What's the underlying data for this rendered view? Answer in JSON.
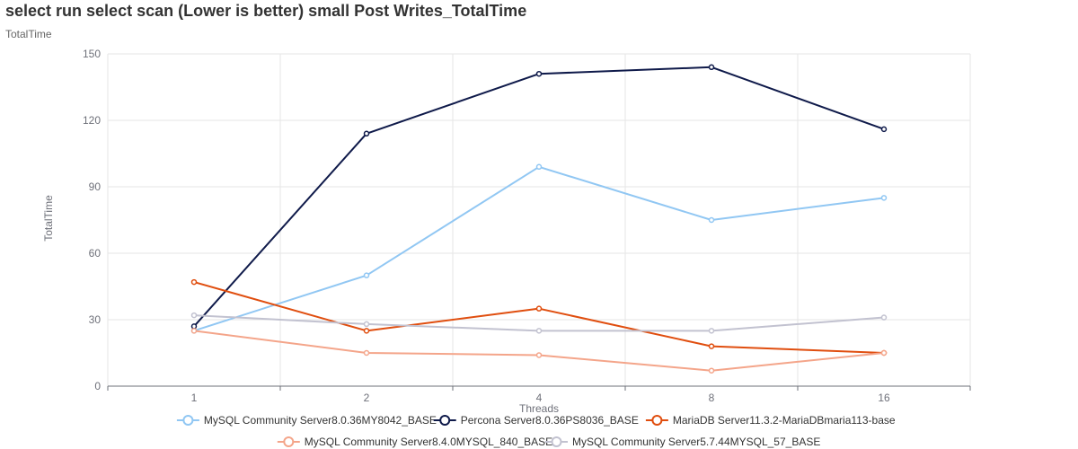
{
  "chart_data": {
    "type": "line",
    "title": "select run select scan (Lower is better)  small Post Writes_TotalTime",
    "subtitle": "TotalTime",
    "xlabel": "Threads",
    "ylabel": "TotalTime",
    "categories": [
      "1",
      "2",
      "4",
      "8",
      "16"
    ],
    "ylim": [
      0,
      150
    ],
    "yticks": [
      0,
      30,
      60,
      90,
      120,
      150
    ],
    "grid": true,
    "legend_position": "bottom",
    "series": [
      {
        "name": "MySQL Community Server8.0.36MY8042_BASE",
        "color": "#91c7f3",
        "values": [
          25,
          50,
          99,
          75,
          85
        ]
      },
      {
        "name": "Percona Server8.0.36PS8036_BASE",
        "color": "#0f1a4a",
        "values": [
          27,
          114,
          141,
          144,
          116
        ]
      },
      {
        "name": "MariaDB Server11.3.2-MariaDBmaria113-base",
        "color": "#e04e0f",
        "values": [
          47,
          25,
          35,
          18,
          15
        ]
      },
      {
        "name": "MySQL Community Server8.4.0MYSQL_840_BASE",
        "color": "#f4a58a",
        "values": [
          25,
          15,
          14,
          7,
          15
        ]
      },
      {
        "name": "MySQL Community Server5.7.44MYSQL_57_BASE",
        "color": "#c2c2d0",
        "values": [
          32,
          28,
          25,
          25,
          31
        ]
      }
    ]
  }
}
